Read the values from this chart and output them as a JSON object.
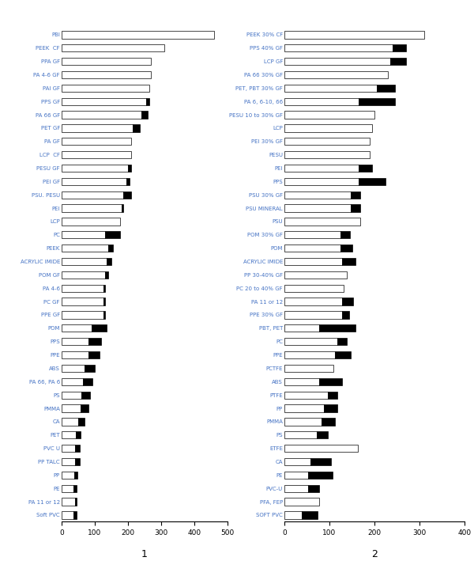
{
  "chart1": {
    "title": "1",
    "xlim": [
      0,
      500
    ],
    "xticks": [
      0,
      100,
      200,
      300,
      400,
      500
    ],
    "categories": [
      "PBI",
      "PEEK  CF",
      "PPA GF",
      "PA 4-6 GF",
      "PAI GF",
      "PPS GF",
      "PA 66 GF",
      "PET GF",
      "PA GF",
      "LCP  CF",
      "PESU GF",
      "PEI GF",
      "PSU. PESU",
      "PEI",
      "LCP",
      "PC",
      "PEEK",
      "ACRYLIC IMIDE",
      "POM GF",
      "PA 4-6",
      "PC GF",
      "PPE GF",
      "POM",
      "PPS",
      "PPE",
      "ABS",
      "PA 66, PA 6",
      "PS",
      "PMMA",
      "CA",
      "PET",
      "PVC U",
      "PP TALC",
      "PP",
      "PE",
      "PA 11 or 12",
      "Soft PVC"
    ],
    "white_bars": [
      460,
      310,
      270,
      270,
      265,
      255,
      240,
      215,
      210,
      210,
      200,
      195,
      185,
      180,
      175,
      130,
      140,
      135,
      130,
      125,
      125,
      125,
      90,
      80,
      80,
      70,
      65,
      60,
      58,
      50,
      42,
      40,
      40,
      38,
      36,
      40,
      35
    ],
    "black_bars": [
      0,
      0,
      0,
      0,
      0,
      10,
      20,
      20,
      0,
      0,
      10,
      10,
      25,
      5,
      0,
      45,
      15,
      15,
      10,
      5,
      5,
      5,
      45,
      40,
      35,
      30,
      28,
      25,
      22,
      20,
      14,
      14,
      14,
      10,
      10,
      5,
      10
    ]
  },
  "chart2": {
    "title": "2",
    "xlim": [
      0,
      400
    ],
    "xticks": [
      0,
      100,
      200,
      300,
      400
    ],
    "categories": [
      "PEEK 30% CF",
      "PPS 40% GF",
      "LCP GF",
      "PA 66 30% GF",
      "PET, PBT 30% GF",
      "PA 6, 6-10, 66",
      "PESU 10 to 30% GF",
      "LCP",
      "PEI 30% GF",
      "PESU",
      "PEI",
      "PPS",
      "PSU 30% GF",
      "PSU MINERAL",
      "PSU",
      "POM 30% GF",
      "POM",
      "ACRYLIC IMIDE",
      "PP 30-40% GF",
      "PC 20 to 40% GF",
      "PA 11 or 12",
      "PPE 30% GF",
      "PBT, PET",
      "PC",
      "PPE",
      "PCTFE",
      "ABS",
      "PTFE",
      "PP",
      "PMMA",
      "PS",
      "ETFE",
      "CA",
      "PE",
      "PVC-U",
      "PFA, FEP",
      "SOFT PVC"
    ],
    "white_bars": [
      310,
      240,
      235,
      230,
      205,
      165,
      200,
      195,
      190,
      190,
      165,
      165,
      148,
      148,
      168,
      125,
      125,
      128,
      138,
      132,
      128,
      128,
      78,
      118,
      112,
      108,
      78,
      97,
      88,
      82,
      72,
      163,
      58,
      52,
      52,
      78,
      38
    ],
    "black_bars": [
      0,
      30,
      35,
      0,
      40,
      80,
      0,
      0,
      0,
      0,
      30,
      60,
      20,
      20,
      0,
      20,
      25,
      30,
      0,
      0,
      25,
      15,
      80,
      20,
      35,
      0,
      50,
      20,
      30,
      30,
      25,
      0,
      45,
      55,
      25,
      0,
      35
    ]
  },
  "white_color": "#ffffff",
  "black_color": "#000000",
  "bar_edge_color": "#000000",
  "bar_height": 0.55,
  "label_fontsize": 5.0,
  "label_color": "#4472c4",
  "background_color": "#ffffff",
  "tick_fontsize": 6.5
}
